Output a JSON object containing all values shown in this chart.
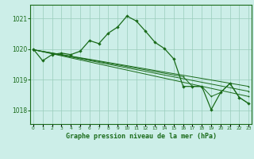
{
  "bg_color": "#cceee8",
  "grid_color": "#99ccbb",
  "line_color": "#1a6b1a",
  "title": "Graphe pression niveau de la mer (hPa)",
  "ylabel_ticks": [
    1018,
    1019,
    1020,
    1021
  ],
  "xlim": [
    -0.3,
    23.3
  ],
  "ylim": [
    1017.55,
    1021.45
  ],
  "line1_x": [
    0,
    1,
    2,
    3,
    4,
    5,
    6,
    7,
    8,
    9,
    10,
    11,
    12,
    13,
    14,
    15,
    16,
    17,
    18,
    19,
    20,
    21,
    22,
    23
  ],
  "line1_y": [
    1020.0,
    1019.62,
    1019.82,
    1019.87,
    1019.82,
    1019.93,
    1020.28,
    1020.18,
    1020.52,
    1020.72,
    1021.08,
    1020.92,
    1020.58,
    1020.22,
    1020.02,
    1019.68,
    1018.78,
    1018.78,
    1018.78,
    1018.02,
    1018.58,
    1018.88,
    1018.42,
    1018.22
  ],
  "line2_x": [
    0,
    16,
    17,
    18,
    19,
    20,
    21,
    22,
    23
  ],
  "line2_y": [
    1019.98,
    1019.1,
    1018.78,
    1018.78,
    1018.45,
    1018.58,
    1018.88,
    1018.42,
    1018.22
  ],
  "line3_x": [
    0,
    23
  ],
  "line3_y": [
    1019.98,
    1018.45
  ],
  "line4_x": [
    0,
    23
  ],
  "line4_y": [
    1019.98,
    1018.62
  ],
  "line5_x": [
    0,
    23
  ],
  "line5_y": [
    1019.98,
    1018.78
  ]
}
